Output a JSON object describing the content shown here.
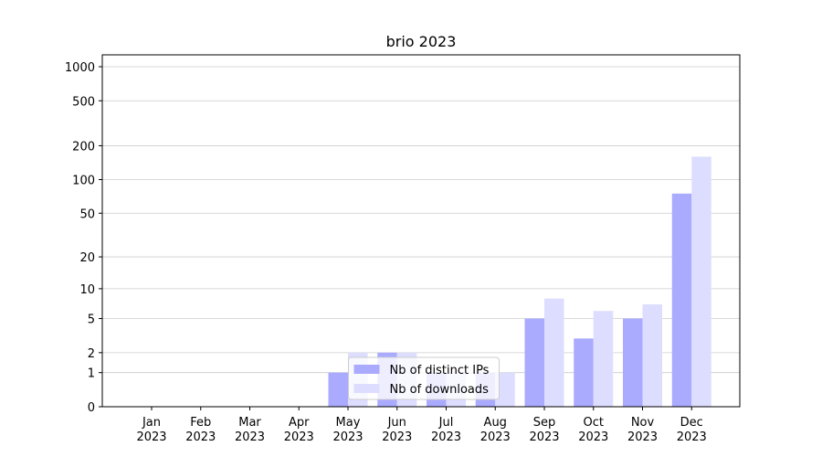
{
  "chart_data": {
    "type": "bar",
    "title": "brio 2023",
    "categories": [
      "Jan\n2023",
      "Feb\n2023",
      "Mar\n2023",
      "Apr\n2023",
      "May\n2023",
      "Jun\n2023",
      "Jul\n2023",
      "Aug\n2023",
      "Sep\n2023",
      "Oct\n2023",
      "Nov\n2023",
      "Dec\n2023"
    ],
    "series": [
      {
        "name": "Nb of distinct IPs",
        "color": "#aaaaff",
        "values": [
          0,
          0,
          0,
          0,
          1,
          2,
          1,
          1,
          5,
          3,
          5,
          75
        ]
      },
      {
        "name": "Nb of downloads",
        "color": "#ddddff",
        "values": [
          0,
          0,
          0,
          0,
          2,
          2,
          1,
          1,
          8,
          6,
          7,
          160
        ]
      }
    ],
    "yscale": "log1p",
    "ylim": [
      0,
      1273
    ],
    "yticks": [
      0,
      1,
      2,
      5,
      10,
      20,
      50,
      100,
      200,
      500,
      1000
    ],
    "grid": true,
    "legend": "lower center"
  }
}
